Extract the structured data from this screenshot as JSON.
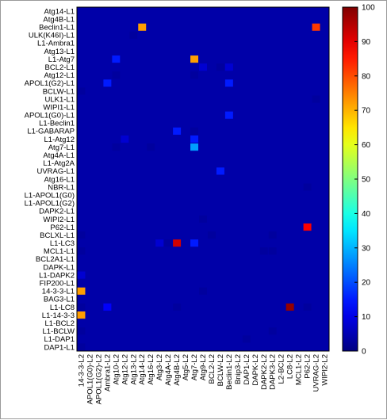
{
  "chart_data": {
    "type": "heatmap",
    "title": "",
    "xlabel": "",
    "ylabel": "",
    "rows": [
      "Atg14-L1",
      "Atg4B-L1",
      "Beclin1-L1",
      "ULK(K46I)-L1",
      "L1-Ambra1",
      "Atg13-L1",
      "L1-Atg7",
      "BCL2-L1",
      "Atg12-L1",
      "APOL1(G2)-L1",
      "BCLW-L1",
      "ULK1-L1",
      "WIPI1-L1",
      "APOL1(G0)-L1",
      "L1-Beclin1",
      "L1-GABARAP",
      "L1-Atg12",
      "Atg7-L1",
      "Atg4A-L1",
      "L1-Atg2A",
      "UVRAG-L1",
      "Atg16-L1",
      "NBR-L1",
      "L1-APOL1(G0)",
      "L1-APOL1(G2)",
      "DAPK2-L1",
      "WIPI2-L1",
      "P62-L1",
      "BCLXL-L1",
      "L1-LC3",
      "MCL1-L1",
      "BCL2A1-L1",
      "DAPK-L1",
      "L1-DAPK2",
      "FIP200-L1",
      "14-3-3-L1",
      "BAG3-L1",
      "L1-LC8",
      "L1-14-3-3",
      "L1-BCL2",
      "L1-BCLW",
      "L1-DAP1",
      "DAP1-L1"
    ],
    "columns": [
      "14-3-3-L2",
      "APOL1(G0)-L2",
      "APOL1(G2)-L2",
      "Ambra1-L2",
      "Atg10-L2",
      "Atg12-L2",
      "Atg13-L2",
      "Atg14-L2",
      "Atg16-L2",
      "Atg3-L2",
      "Atg4A-L2",
      "Atg4B-L2",
      "Atg5-L2",
      "Atg7-L2",
      "Atg9-L2",
      "BCL2-L2",
      "BCLW-L2",
      "Beclin1-L2",
      "Bnip3-L2",
      "DAP1-L2",
      "DAPK-L2",
      "DAPK2-L2",
      "DAPK3-L2",
      "L2-BCL2",
      "LC8-L2",
      "MCL1-L2",
      "P62-L2",
      "UVRAG-L2",
      "WIPI2-L2"
    ],
    "cells": [
      {
        "row": "Beclin1-L1",
        "col": "Atg14-L2",
        "value": 72
      },
      {
        "row": "Beclin1-L1",
        "col": "UVRAG-L2",
        "value": 82
      },
      {
        "row": "ULK(K46I)-L1",
        "col": "Atg13-L2",
        "value": 3
      },
      {
        "row": "L1-Atg7",
        "col": "Atg10-L2",
        "value": 15
      },
      {
        "row": "L1-Atg7",
        "col": "Atg7-L2",
        "value": 72
      },
      {
        "row": "BCL2-L1",
        "col": "Atg9-L2",
        "value": 8
      },
      {
        "row": "BCL2-L1",
        "col": "BCLW-L2",
        "value": 3
      },
      {
        "row": "BCL2-L1",
        "col": "Beclin1-L2",
        "value": 8
      },
      {
        "row": "Atg12-L1",
        "col": "Atg10-L2",
        "value": 3
      },
      {
        "row": "Atg12-L1",
        "col": "Atg7-L2",
        "value": 3
      },
      {
        "row": "APOL1(G2)-L1",
        "col": "Ambra1-L2",
        "value": 15
      },
      {
        "row": "APOL1(G2)-L1",
        "col": "Beclin1-L2",
        "value": 15
      },
      {
        "row": "BCLW-L1",
        "col": "14-3-3-L2",
        "value": 3
      },
      {
        "row": "ULK1-L1",
        "col": "UVRAG-L2",
        "value": 3
      },
      {
        "row": "APOL1(G0)-L1",
        "col": "Beclin1-L2",
        "value": 15
      },
      {
        "row": "L1-GABARAP",
        "col": "Atg4B-L2",
        "value": 15
      },
      {
        "row": "L1-GABARAP",
        "col": "Atg7-L2",
        "value": 3
      },
      {
        "row": "L1-Atg12",
        "col": "Atg12-L2",
        "value": 8
      },
      {
        "row": "L1-Atg12",
        "col": "Atg7-L2",
        "value": 15
      },
      {
        "row": "Atg7-L1",
        "col": "Atg10-L2",
        "value": 3
      },
      {
        "row": "Atg7-L1",
        "col": "Atg16-L2",
        "value": 3
      },
      {
        "row": "Atg7-L1",
        "col": "Atg7-L2",
        "value": 28
      },
      {
        "row": "UVRAG-L1",
        "col": "BCLW-L2",
        "value": 15
      },
      {
        "row": "NBR-L1",
        "col": "P62-L2",
        "value": 3
      },
      {
        "row": "WIPI2-L1",
        "col": "Atg9-L2",
        "value": 3
      },
      {
        "row": "P62-L1",
        "col": "P62-L2",
        "value": 88
      },
      {
        "row": "BCLXL-L1",
        "col": "14-3-3-L2",
        "value": 3
      },
      {
        "row": "BCLXL-L1",
        "col": "BCL2-L2",
        "value": 3
      },
      {
        "row": "BCLXL-L1",
        "col": "DAPK3-L2",
        "value": 3
      },
      {
        "row": "L1-LC3",
        "col": "Atg3-L2",
        "value": 8
      },
      {
        "row": "L1-LC3",
        "col": "Atg4A-L2",
        "value": 3
      },
      {
        "row": "L1-LC3",
        "col": "Atg4B-L2",
        "value": 92
      },
      {
        "row": "L1-LC3",
        "col": "Atg7-L2",
        "value": 15
      },
      {
        "row": "MCL1-L1",
        "col": "14-3-3-L2",
        "value": 3
      },
      {
        "row": "MCL1-L1",
        "col": "DAPK2-L2",
        "value": 3
      },
      {
        "row": "MCL1-L1",
        "col": "DAPK3-L2",
        "value": 3
      },
      {
        "row": "L1-DAPK2",
        "col": "14-3-3-L2",
        "value": 8
      },
      {
        "row": "14-3-3-L1",
        "col": "14-3-3-L2",
        "value": 72
      },
      {
        "row": "14-3-3-L1",
        "col": "Atg9-L2",
        "value": 3
      },
      {
        "row": "L1-LC8",
        "col": "14-3-3-L2",
        "value": 3
      },
      {
        "row": "L1-LC8",
        "col": "Ambra1-L2",
        "value": 12
      },
      {
        "row": "L1-LC8",
        "col": "Atg4B-L2",
        "value": 3
      },
      {
        "row": "L1-LC8",
        "col": "LC8-L2",
        "value": 98
      },
      {
        "row": "L1-LC8",
        "col": "P62-L2",
        "value": 3
      },
      {
        "row": "L1-14-3-3",
        "col": "14-3-3-L2",
        "value": 72
      },
      {
        "row": "L1-BCLW",
        "col": "14-3-3-L2",
        "value": 3
      },
      {
        "row": "L1-BCLW",
        "col": "DAPK3-L2",
        "value": 3
      },
      {
        "row": "L1-DAP1",
        "col": "DAP1-L2",
        "value": 3
      },
      {
        "row": "DAP1-L1",
        "col": "14-3-3-L2",
        "value": 3
      }
    ],
    "colorbar": {
      "min": 0,
      "max": 100,
      "ticks": [
        0,
        10,
        20,
        30,
        40,
        50,
        60,
        70,
        80,
        90,
        100
      ]
    },
    "background_color": "#0000a8",
    "grid": false,
    "legend": "colorbar-right"
  }
}
